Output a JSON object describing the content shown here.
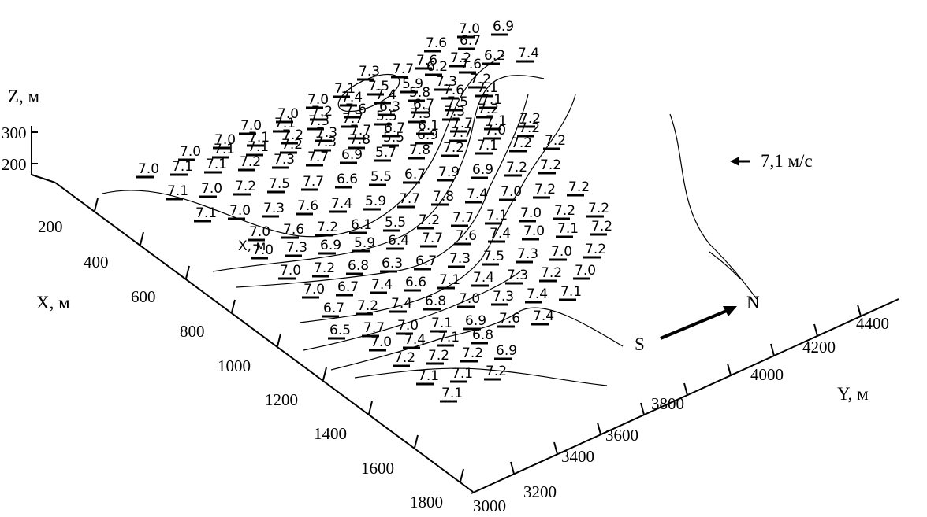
{
  "axes": {
    "z_title": "Z,  м",
    "x_title": "X, м",
    "y_title": "Y, м",
    "x_inner_title": "X, м",
    "z_ticks": [
      "300",
      "200"
    ],
    "x_ticks": [
      "200",
      "400",
      "600",
      "800",
      "1000",
      "1200",
      "1400",
      "1600",
      "1800"
    ],
    "y_ticks": [
      "3000",
      "3200",
      "3400",
      "3600",
      "3800",
      "4000",
      "4200",
      "4400"
    ]
  },
  "legend": {
    "reference_speed": "7,1 м/с",
    "direction_start": "S",
    "direction_end": "N"
  },
  "wind_speed_rows": [
    [
      "7.0",
      "6.9"
    ],
    [
      "7.6",
      "6.7"
    ],
    [
      "7.6",
      "7.2",
      "6.2",
      "7.4"
    ],
    [
      "7.3",
      "7.7",
      "6.2",
      "7.6"
    ],
    [
      "7.1",
      "7.5",
      "5.9",
      "7.3",
      "7.2"
    ],
    [
      "7.0",
      "7.4",
      "7.4",
      "5.8",
      "7.6",
      "7.1"
    ],
    [
      "7.0",
      "7.2",
      "7.6",
      "6.3",
      "6.7",
      "7.5",
      "7.1"
    ],
    [
      "7.0",
      "7.1",
      "7.3",
      "7.7",
      "5.5",
      "7.3",
      "7.3",
      "7.2"
    ],
    [
      "7.0",
      "7.1",
      "7.2",
      "7.3",
      "7.7",
      "6.7",
      "6.1",
      "7.7",
      "7.1",
      "7.2"
    ],
    [
      "7.0",
      "7.1",
      "7.1",
      "7.2",
      "7.3",
      "7.8",
      "5.5",
      "6.9",
      "7.7",
      "7.0",
      "7.2"
    ],
    [
      "7.0",
      "7.1",
      "7.1",
      "7.2",
      "7.3",
      "7.7",
      "6.9",
      "5.7",
      "7.8",
      "7.2",
      "7.1",
      "7.2",
      "7.2"
    ],
    [
      "7.1",
      "7.0",
      "7.2",
      "7.5",
      "7.7",
      "6.6",
      "5.5",
      "6.7",
      "7.9",
      "6.9",
      "7.2",
      "7.2"
    ],
    [
      "7.1",
      "7.0",
      "7.3",
      "7.6",
      "7.4",
      "5.9",
      "7.7",
      "7.8",
      "7.4",
      "7.0",
      "7.2",
      "7.2"
    ],
    [
      "7.0",
      "7.6",
      "7.2",
      "6.1",
      "5.5",
      "7.2",
      "7.7",
      "7.1",
      "7.0",
      "7.2",
      "7.2"
    ],
    [
      "7.0",
      "7.3",
      "6.9",
      "5.9",
      "6.4",
      "7.7",
      "7.6",
      "7.4",
      "7.0",
      "7.1",
      "7.2"
    ],
    [
      "7.0",
      "7.2",
      "6.8",
      "6.3",
      "6.7",
      "7.3",
      "7.5",
      "7.3",
      "7.0",
      "7.2"
    ],
    [
      "7.0",
      "6.7",
      "7.4",
      "6.6",
      "7.1",
      "7.4",
      "7.3",
      "7.2",
      "7.0"
    ],
    [
      "6.7",
      "7.2",
      "7.4",
      "6.8",
      "7.0",
      "7.3",
      "7.4",
      "7.1"
    ],
    [
      "6.5",
      "7.7",
      "7.0",
      "7.1",
      "6.9",
      "7.6",
      "7.4"
    ],
    [
      "7.0",
      "7.4",
      "7.1",
      "6.8"
    ],
    [
      "7.2",
      "7.2",
      "7.2",
      "6.9"
    ],
    [
      "7.1",
      "7.1",
      "7.2"
    ],
    [
      "7.1"
    ]
  ]
}
